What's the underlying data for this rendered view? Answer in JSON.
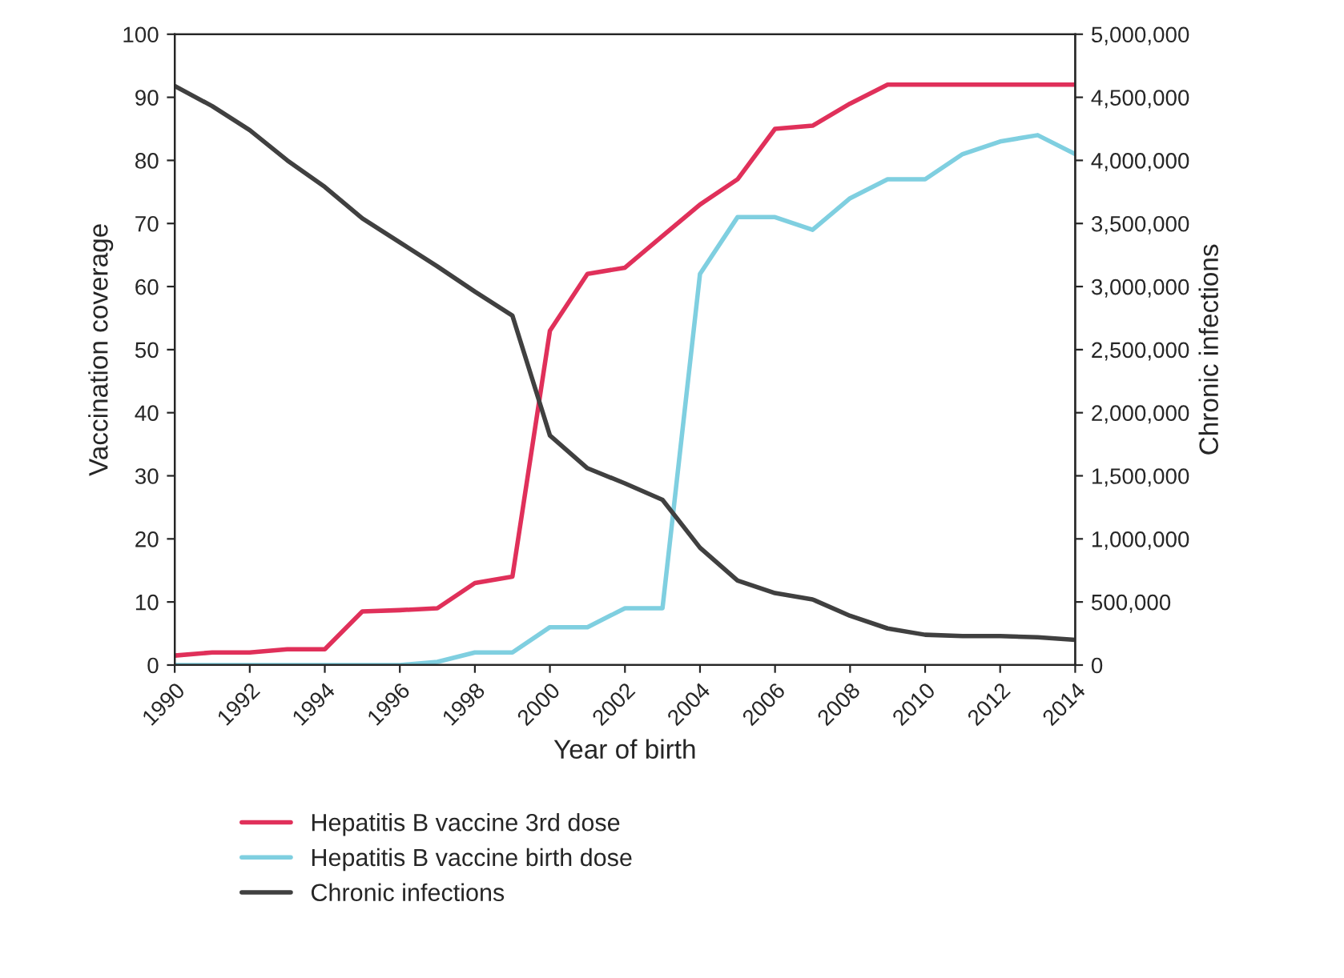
{
  "chart_data": {
    "type": "line",
    "xlabel": "Year of birth",
    "ylabel": "Vaccination coverage",
    "y2label": "Chronic infections",
    "x": [
      1990,
      1991,
      1992,
      1993,
      1994,
      1995,
      1996,
      1997,
      1998,
      1999,
      2000,
      2001,
      2002,
      2003,
      2004,
      2005,
      2006,
      2007,
      2008,
      2009,
      2010,
      2011,
      2012,
      2013,
      2014
    ],
    "series": [
      {
        "name": "Hepatitis B vaccine 3rd dose",
        "color": "#e0305a",
        "values": [
          1.5,
          2,
          2,
          2.5,
          2.5,
          8.5,
          8.7,
          9,
          13,
          14,
          53,
          62,
          63,
          68,
          73,
          77,
          85,
          85.5,
          89,
          92,
          92,
          92,
          92,
          92,
          92
        ]
      },
      {
        "name": "Hepatitis B vaccine birth dose",
        "color": "#7fcfe0",
        "values": [
          0,
          0,
          0,
          0,
          0,
          0,
          0,
          0.5,
          2,
          2,
          6,
          6,
          9,
          9,
          62,
          71,
          71,
          69,
          74,
          77,
          77,
          81,
          83,
          84,
          81
        ]
      },
      {
        "name": "Chronic infections",
        "color": "#404040",
        "axis": "y2",
        "values": [
          4590000,
          4430000,
          4240000,
          4000000,
          3790000,
          3540000,
          3350000,
          3160000,
          2960000,
          2770000,
          1820000,
          1560000,
          1440000,
          1310000,
          930000,
          670000,
          570000,
          520000,
          390000,
          290000,
          240000,
          230000,
          230000,
          220000,
          200000
        ]
      }
    ],
    "xlim": [
      1990,
      2014
    ],
    "xticks": [
      1990,
      1992,
      1994,
      1996,
      1998,
      2000,
      2002,
      2004,
      2006,
      2008,
      2010,
      2012,
      2014
    ],
    "ylim": [
      0,
      100
    ],
    "yticks": [
      0,
      10,
      20,
      30,
      40,
      50,
      60,
      70,
      80,
      90,
      100
    ],
    "y2lim": [
      0,
      5000000
    ],
    "y2ticks": [
      {
        "value": 0,
        "label": "0"
      },
      {
        "value": 500000,
        "label": "500,000"
      },
      {
        "value": 1000000,
        "label": "1,000,000"
      },
      {
        "value": 1500000,
        "label": "1,500,000"
      },
      {
        "value": 2000000,
        "label": "2,000,000"
      },
      {
        "value": 2500000,
        "label": "2,500,000"
      },
      {
        "value": 3000000,
        "label": "3,000,000"
      },
      {
        "value": 3500000,
        "label": "3,500,000"
      },
      {
        "value": 4000000,
        "label": "4,000,000"
      },
      {
        "value": 4500000,
        "label": "4,500,000"
      },
      {
        "value": 5000000,
        "label": "5,000,000"
      }
    ],
    "grid": false,
    "legend": "bottom",
    "line_style": "solid"
  }
}
